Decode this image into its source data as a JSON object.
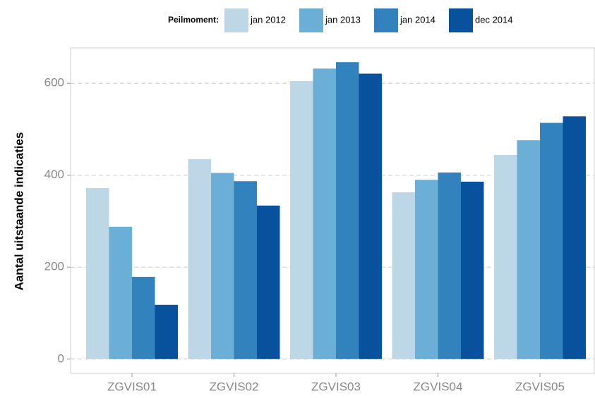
{
  "chart_data": {
    "type": "bar",
    "legend_title": "Peilmoment:",
    "y_label": "Aantal uitstaande indicaties",
    "categories": [
      "ZGVIS01",
      "ZGVIS02",
      "ZGVIS03",
      "ZGVIS04",
      "ZGVIS05"
    ],
    "series": [
      {
        "name": "jan 2012",
        "color": "#bdd7e7",
        "values": [
          372,
          435,
          605,
          363,
          444
        ]
      },
      {
        "name": "jan 2013",
        "color": "#6baed6",
        "values": [
          288,
          405,
          632,
          390,
          476
        ]
      },
      {
        "name": "jan 2014",
        "color": "#3182bd",
        "values": [
          179,
          387,
          646,
          406,
          514
        ]
      },
      {
        "name": "dec 2014",
        "color": "#08519c",
        "values": [
          118,
          334,
          621,
          386,
          528
        ]
      }
    ],
    "ylim": [
      -31,
      677
    ],
    "yticks": [
      0,
      200,
      400,
      600
    ],
    "grid": true,
    "legend_position": "top"
  }
}
